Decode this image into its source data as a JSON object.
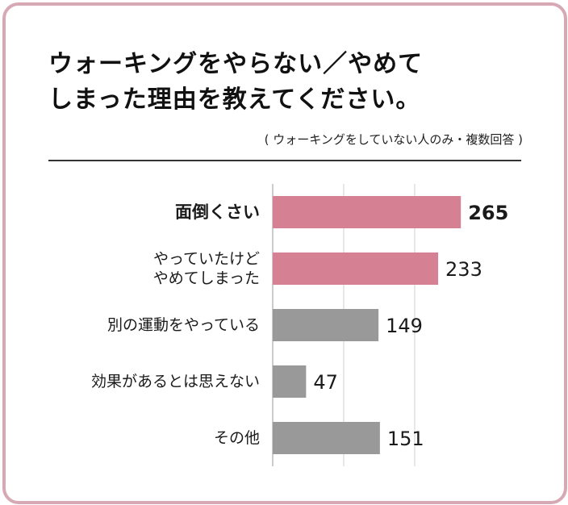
{
  "header": {
    "title_line1": "ウォーキングをやらない／やめて",
    "title_line2": "しまった理由を教えてください。",
    "note": "( ウォーキングをしていない人のみ・複数回答 )"
  },
  "colors": {
    "highlight": "#d68193",
    "neutral": "#999999",
    "frame": "#d6a9b4",
    "grid": "#cfcfcf"
  },
  "chart_data": {
    "type": "bar",
    "orientation": "horizontal",
    "categories": [
      [
        "面倒くさい"
      ],
      [
        "やっていたけど",
        "やめてしまった"
      ],
      [
        "別の運動をやっている"
      ],
      [
        "効果があるとは思えない"
      ],
      [
        "その他"
      ]
    ],
    "values": [
      265,
      233,
      149,
      47,
      151
    ],
    "highlighted": [
      true,
      true,
      false,
      false,
      false
    ],
    "emphasized": [
      true,
      false,
      false,
      false,
      false
    ],
    "xlim": [
      0,
      300
    ],
    "grid": true,
    "gridlines_at": [
      0,
      100,
      200
    ]
  }
}
